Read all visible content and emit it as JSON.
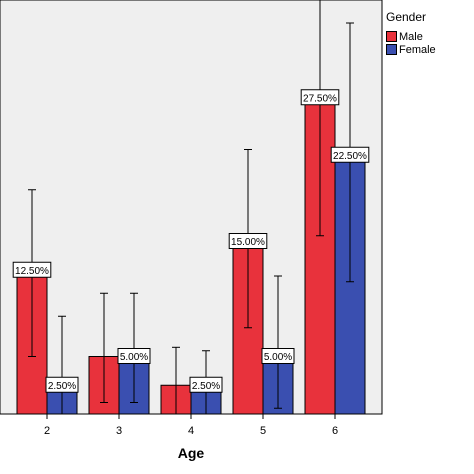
{
  "chart_data": {
    "type": "bar",
    "title": "",
    "xlabel": "Age",
    "ylabel": "",
    "categories": [
      "2",
      "3",
      "4",
      "5",
      "6"
    ],
    "ylim": [
      0,
      0.36
    ],
    "grid": false,
    "legend_position": "top-right",
    "legend_title": "Gender",
    "series": [
      {
        "name": "Male",
        "color": "#e8323c",
        "values": [
          0.125,
          0.05,
          0.025,
          0.15,
          0.275
        ],
        "labels": [
          "12.50%",
          "",
          "",
          "15.00%",
          "27.50%"
        ],
        "error_low": [
          0.05,
          0.01,
          0.0,
          0.075,
          0.155
        ],
        "error_high": [
          0.195,
          0.105,
          0.058,
          0.23,
          0.395
        ]
      },
      {
        "name": "Female",
        "color": "#3a4fb0",
        "values": [
          0.025,
          0.05,
          0.025,
          0.05,
          0.225
        ],
        "labels": [
          "2.50%",
          "5.00%",
          "2.50%",
          "5.00%",
          "22.50%"
        ],
        "error_low": [
          0.0,
          0.01,
          0.0,
          0.005,
          0.115
        ],
        "error_high": [
          0.085,
          0.105,
          0.055,
          0.12,
          0.34
        ]
      }
    ]
  },
  "legend": {
    "title": "Gender",
    "items": [
      "Male",
      "Female"
    ]
  }
}
